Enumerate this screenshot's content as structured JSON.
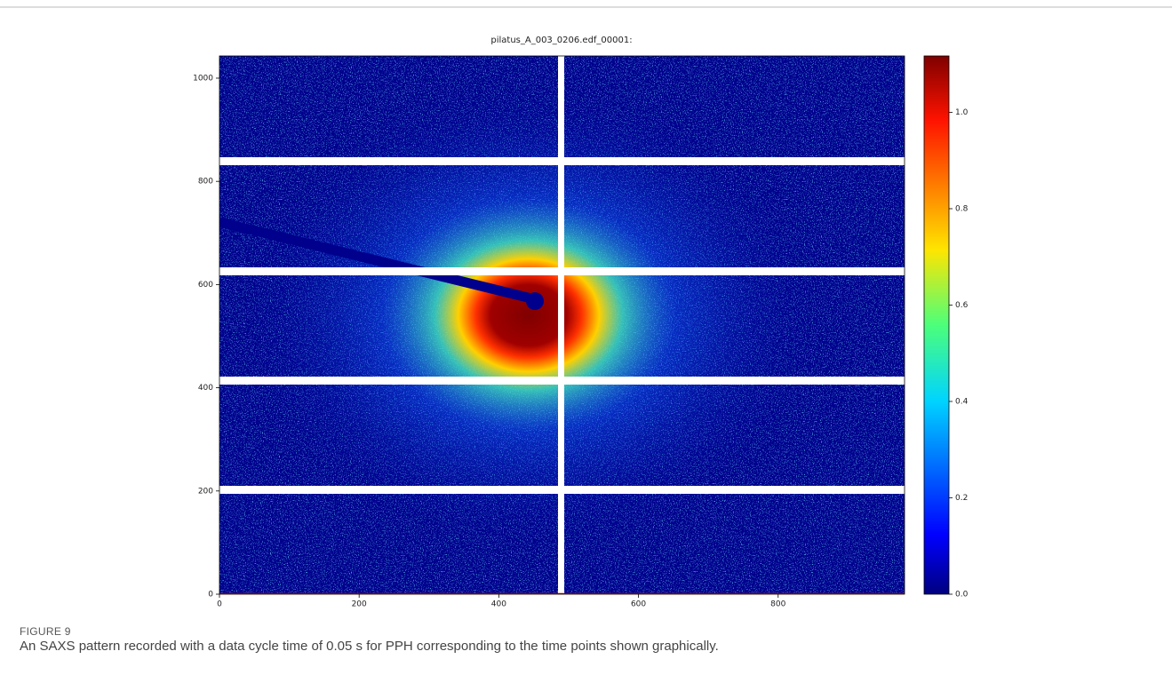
{
  "chart_data": {
    "type": "heatmap",
    "title": "pilatus_A_003_0206.edf_00001:",
    "xlim": [
      0,
      981
    ],
    "xticks": [
      0,
      200,
      400,
      600,
      800
    ],
    "ylim": [
      0,
      1043
    ],
    "yticks": [
      0,
      200,
      400,
      600,
      800,
      1000
    ],
    "colorbar": {
      "lim": [
        0,
        1.117
      ],
      "colormap": "jet",
      "ticks": [
        {
          "value": 0,
          "label": "0.0"
        },
        {
          "value": 0.2,
          "label": "0.2"
        },
        {
          "value": 0.4,
          "label": "0.4"
        },
        {
          "value": 0.6,
          "label": "0.6"
        },
        {
          "value": 0.8,
          "label": "0.8"
        },
        {
          "value": 1,
          "label": "1.0"
        }
      ]
    }
  },
  "caption": {
    "label": "FIGURE 9",
    "text": "An SAXS pattern recorded with a data cycle time of 0.05 s for PPH corresponding to the time points shown graphically."
  }
}
